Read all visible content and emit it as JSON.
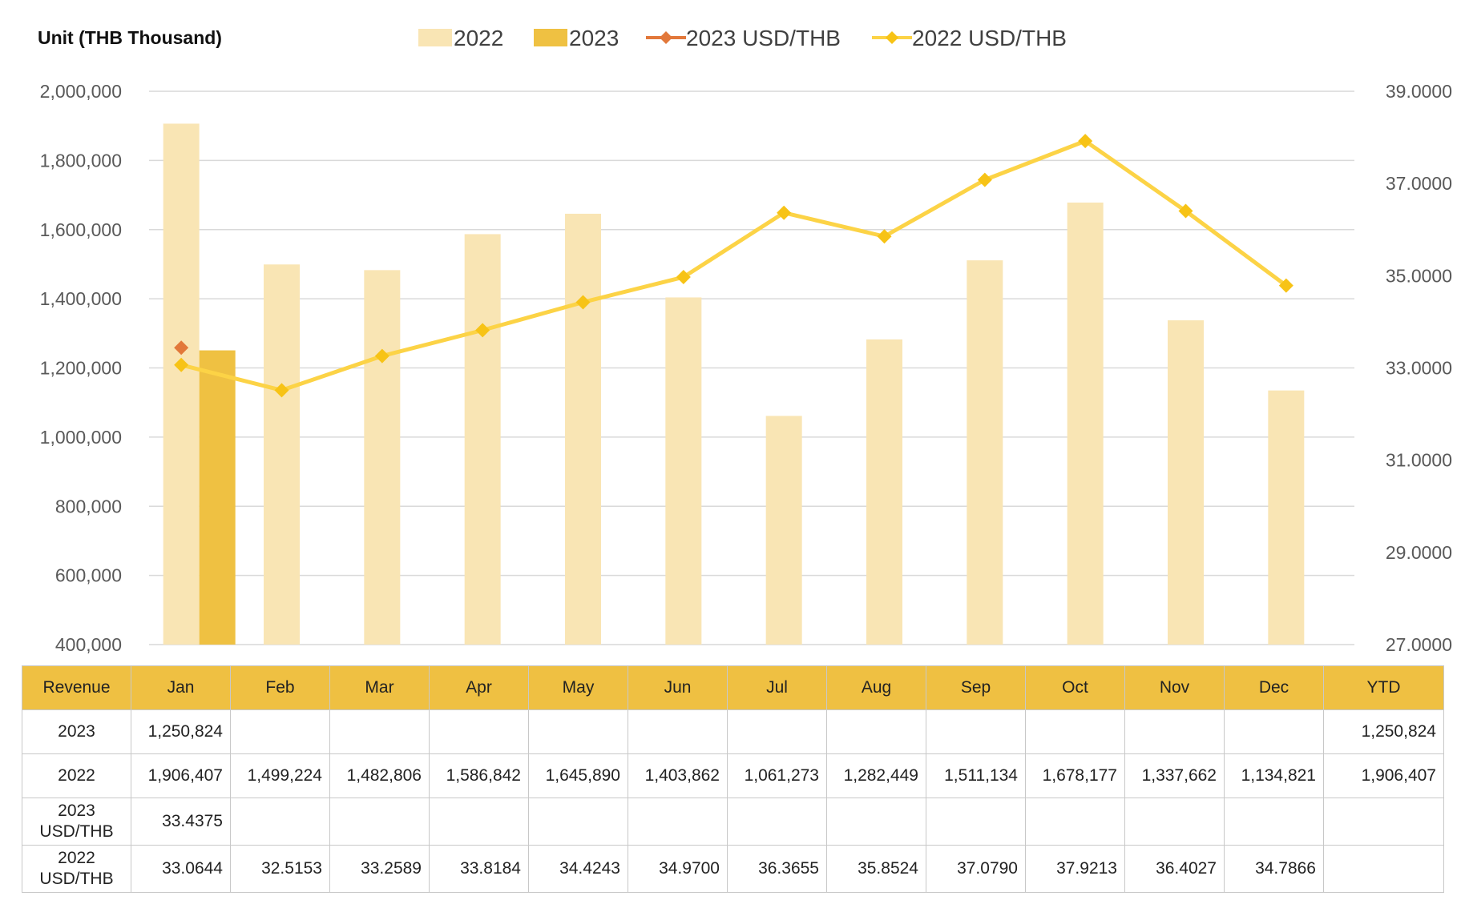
{
  "unit_label": "Unit (THB  Thousand)",
  "colors": {
    "bar_2022": "#f9e5b4",
    "bar_2023": "#efc142",
    "line_2023": "#e2783a",
    "line_2022": "#fcd346",
    "marker_2022": "#f7c316",
    "grid": "#d9d9d9",
    "table_header": "#efc042"
  },
  "chart_data": {
    "type": "bar",
    "categories": [
      "Jan",
      "Feb",
      "Mar",
      "Apr",
      "May",
      "Jun",
      "Jul",
      "Aug",
      "Sep",
      "Oct",
      "Nov",
      "Dec"
    ],
    "bar_series": [
      {
        "name": "2022",
        "values": [
          1906407,
          1499224,
          1482806,
          1586842,
          1645890,
          1403862,
          1061273,
          1282449,
          1511134,
          1678177,
          1337662,
          1134821
        ]
      },
      {
        "name": "2023",
        "values": [
          1250824,
          null,
          null,
          null,
          null,
          null,
          null,
          null,
          null,
          null,
          null,
          null
        ]
      }
    ],
    "line_series": [
      {
        "name": "2023 USD/THB",
        "values": [
          33.4375,
          null,
          null,
          null,
          null,
          null,
          null,
          null,
          null,
          null,
          null,
          null
        ]
      },
      {
        "name": "2022 USD/THB",
        "values": [
          33.0644,
          32.5153,
          33.2589,
          33.8184,
          34.4243,
          34.97,
          36.3655,
          35.8524,
          37.079,
          37.9213,
          36.4027,
          34.7866
        ]
      }
    ],
    "legend": [
      "2022",
      "2023",
      "2023 USD/THB",
      "2022 USD/THB"
    ],
    "legend_position": "top",
    "y_left": {
      "min": 400000,
      "max": 2000000,
      "step": 200000,
      "tick_labels": [
        "400,000",
        "600,000",
        "800,000",
        "1,000,000",
        "1,200,000",
        "1,400,000",
        "1,600,000",
        "1,800,000",
        "2,000,000"
      ]
    },
    "y_right": {
      "min": 27,
      "max": 39,
      "step": 2,
      "tick_labels": [
        "27.0000",
        "29.0000",
        "31.0000",
        "33.0000",
        "35.0000",
        "37.0000",
        "39.0000"
      ]
    },
    "grid": true
  },
  "table": {
    "header": [
      "Revenue",
      "Jan",
      "Feb",
      "Mar",
      "Apr",
      "May",
      "Jun",
      "Jul",
      "Aug",
      "Sep",
      "Oct",
      "Nov",
      "Dec",
      "YTD"
    ],
    "rows": [
      {
        "label": "2023",
        "cells": [
          "1,250,824",
          "",
          "",
          "",
          "",
          "",
          "",
          "",
          "",
          "",
          "",
          "",
          "1,250,824"
        ]
      },
      {
        "label": "2022",
        "cells": [
          "1,906,407",
          "1,499,224",
          "1,482,806",
          "1,586,842",
          "1,645,890",
          "1,403,862",
          "1,061,273",
          "1,282,449",
          "1,511,134",
          "1,678,177",
          "1,337,662",
          "1,134,821",
          "1,906,407"
        ]
      },
      {
        "label": "2023\nUSD/THB",
        "cells": [
          "33.4375",
          "",
          "",
          "",
          "",
          "",
          "",
          "",
          "",
          "",
          "",
          "",
          ""
        ]
      },
      {
        "label": "2022\nUSD/THB",
        "cells": [
          "33.0644",
          "32.5153",
          "33.2589",
          "33.8184",
          "34.4243",
          "34.9700",
          "36.3655",
          "35.8524",
          "37.0790",
          "37.9213",
          "36.4027",
          "34.7866",
          ""
        ]
      }
    ]
  }
}
